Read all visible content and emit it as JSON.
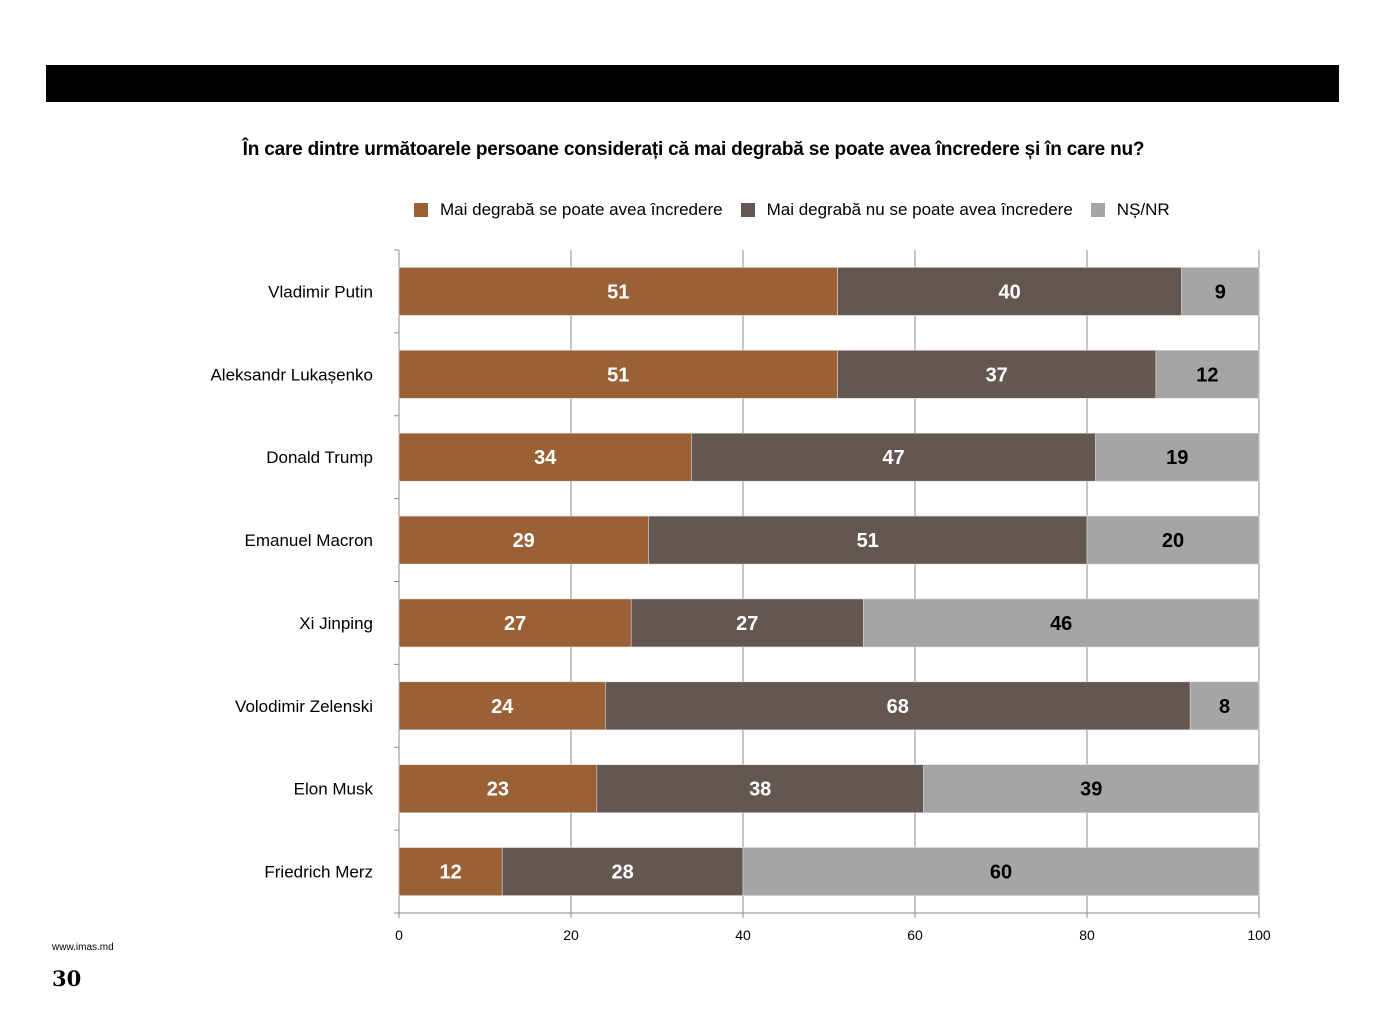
{
  "header_bar": "",
  "footer": {
    "url": "www.imas.md",
    "page_number": "30"
  },
  "colors": {
    "trust": "#9A6137",
    "distrust": "#645751",
    "dk_na": "#A5A5A5"
  },
  "chart_data": {
    "type": "bar",
    "orientation": "horizontal",
    "stacked": true,
    "title": "În care dintre următoarele persoane considerați că mai degrabă se poate avea încredere și în care nu?",
    "xlabel": "",
    "ylabel": "",
    "xlim": [
      0,
      100
    ],
    "xticks": [
      "0",
      "20",
      "40",
      "60",
      "80",
      "100"
    ],
    "grid": true,
    "legend_position": "top",
    "categories": [
      "Vladimir Putin",
      "Aleksandr Lukașenko",
      "Donald Trump",
      "Emanuel Macron",
      "Xi Jinping",
      "Volodimir Zelenski",
      "Elon Musk",
      "Friedrich Merz"
    ],
    "series": [
      {
        "name": "Mai degrabă se poate avea încredere",
        "values": [
          51,
          51,
          34,
          29,
          27,
          24,
          23,
          12
        ]
      },
      {
        "name": "Mai degrabă nu se poate avea încredere",
        "values": [
          40,
          37,
          47,
          51,
          27,
          68,
          38,
          28
        ]
      },
      {
        "name": "NȘ/NR",
        "values": [
          9,
          12,
          19,
          20,
          46,
          8,
          39,
          60
        ]
      }
    ]
  }
}
